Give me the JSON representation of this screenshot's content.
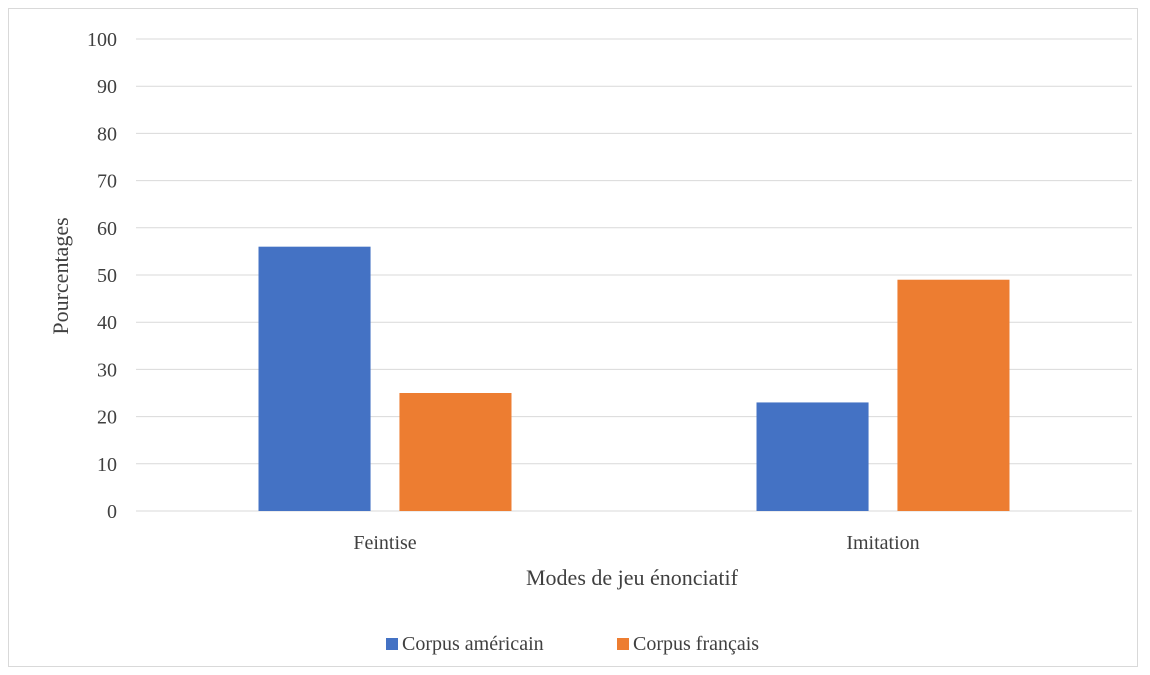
{
  "chart_data": {
    "type": "bar",
    "categories": [
      "Feintise",
      "Imitation"
    ],
    "series": [
      {
        "name": "Corpus américain",
        "values": [
          56,
          23
        ],
        "color": "#4472C4"
      },
      {
        "name": "Corpus français",
        "values": [
          25,
          49
        ],
        "color": "#ED7D31"
      }
    ],
    "xlabel": "Modes de jeu énonciatif",
    "ylabel": "Pourcentages",
    "ylim": [
      0,
      100
    ],
    "yticks": [
      0,
      10,
      20,
      30,
      40,
      50,
      60,
      70,
      80,
      90,
      100
    ],
    "grid": true,
    "gridColor": "#d9d9d9",
    "legend": "bottom"
  }
}
